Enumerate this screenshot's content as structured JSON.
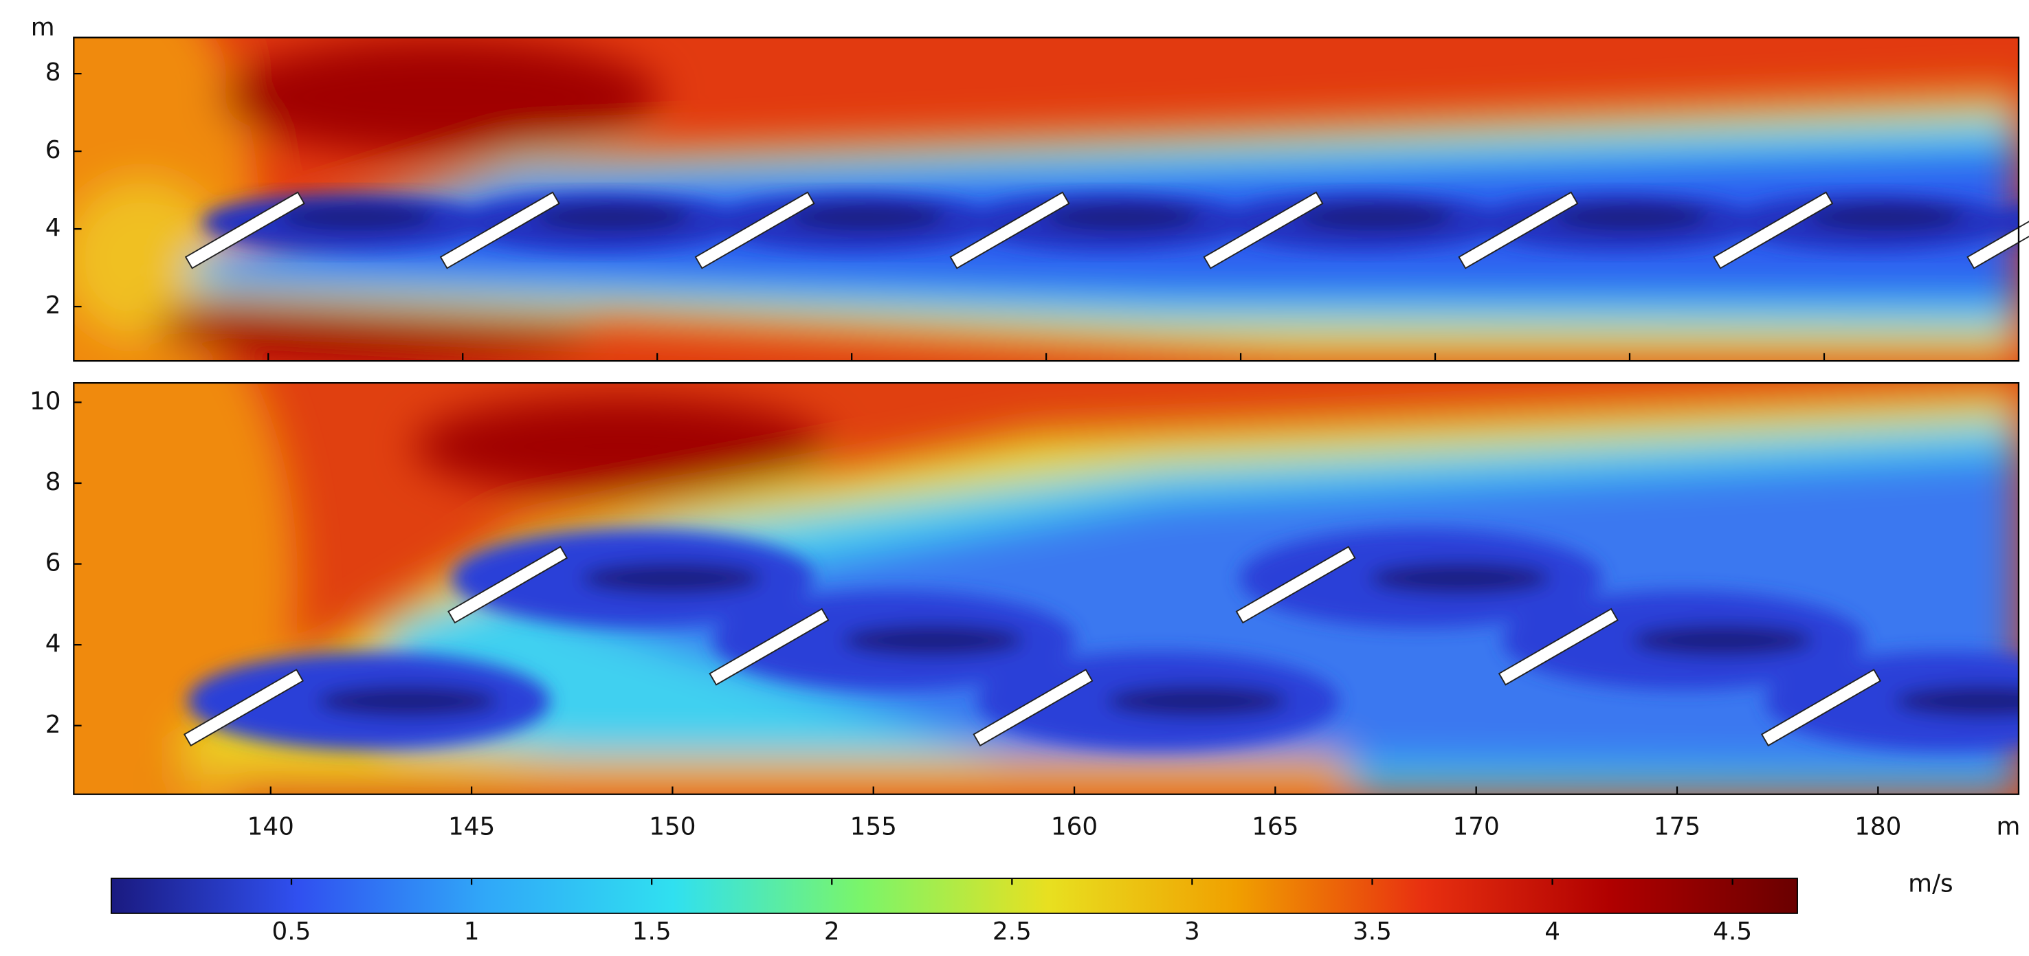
{
  "chart_data": [
    {
      "type": "field",
      "xlim": [
        135,
        185
      ],
      "xticks": [
        140,
        145,
        150,
        155,
        160,
        165,
        170,
        175,
        180
      ],
      "ylim": [
        0.6,
        8.93
      ],
      "yticks": [
        2,
        4,
        6,
        8
      ],
      "y_unit": "m"
    },
    {
      "type": "field",
      "xlim": [
        135.1,
        183.5
      ],
      "xticks": [
        140,
        145,
        150,
        155,
        160,
        165,
        170,
        175,
        180
      ],
      "ylim": [
        0.3,
        10.48
      ],
      "yticks": [
        2,
        4,
        6,
        8,
        10
      ],
      "x_unit": "m"
    },
    {
      "type": "colorbar",
      "label": "m/s",
      "lim": [
        0,
        4.68
      ],
      "ticks": [
        0.5,
        1,
        1.5,
        2,
        2.5,
        3,
        3.5,
        4,
        4.5
      ],
      "colors": [
        "#1a1a80",
        "#3050f0",
        "#30a8f8",
        "#30e0f0",
        "#7af56a",
        "#e8e020",
        "#f0a000",
        "#e83010",
        "#b00000",
        "#6a0000"
      ]
    }
  ]
}
